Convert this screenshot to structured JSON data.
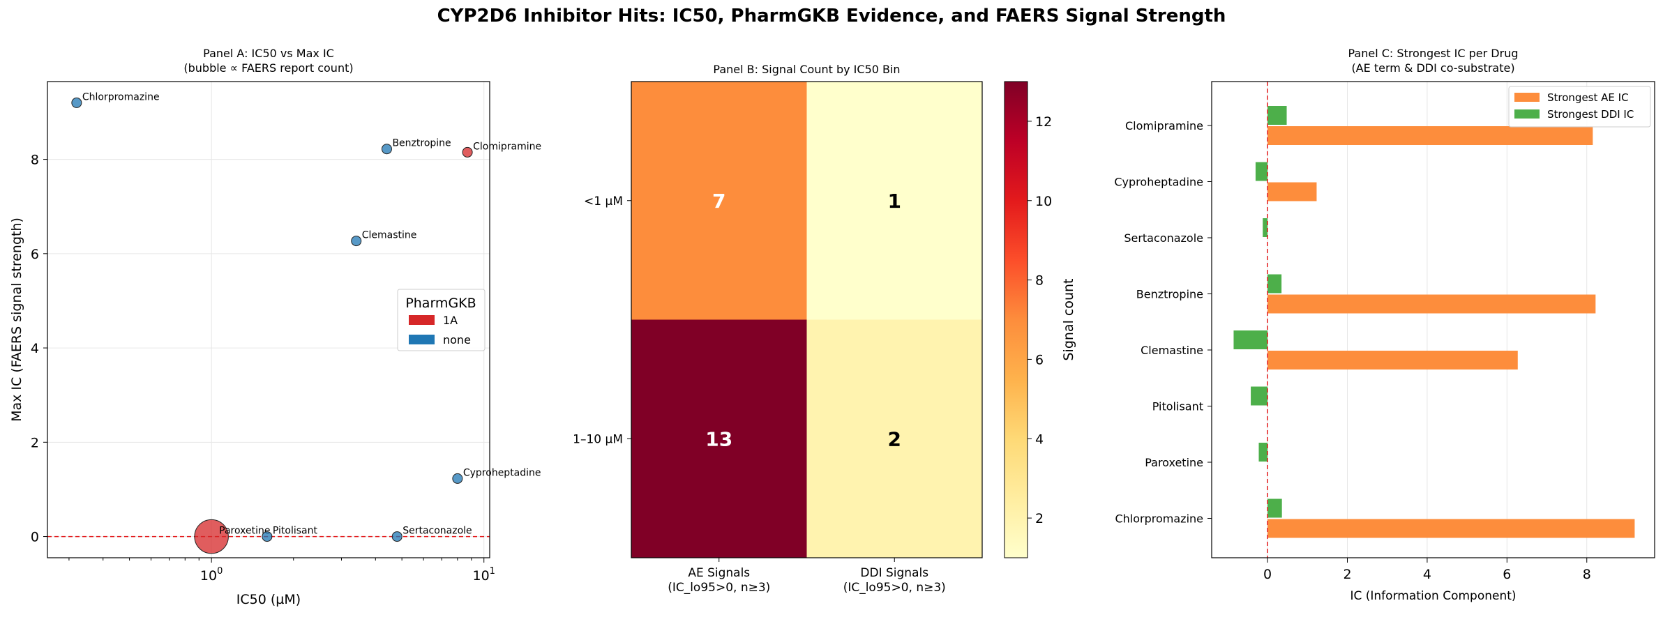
{
  "figure": {
    "title": "CYP2D6 Inhibitor Hits: IC50, PharmGKB Evidence, and FAERS Signal Strength"
  },
  "chart_data": [
    {
      "panel": "A",
      "type": "scatter",
      "title_lines": [
        "Panel A: IC50 vs Max IC",
        "(bubble ∝ FAERS report count)"
      ],
      "xlabel": "IC50 (µM)",
      "ylabel": "Max IC (FAERS signal strength)",
      "x_scale": "log",
      "xlim": [
        0.25,
        10.5
      ],
      "ylim": [
        -0.45,
        9.65
      ],
      "x_ticks": [
        {
          "value": 1,
          "base": "10",
          "exp": "0"
        },
        {
          "value": 10,
          "base": "10",
          "exp": "1"
        }
      ],
      "y_ticks": [
        0,
        2,
        4,
        6,
        8
      ],
      "grid": true,
      "reference_line": {
        "y": 0,
        "color": "#e31a1c"
      },
      "legend": {
        "title": "PharmGKB",
        "placement": "center-right",
        "entries": [
          {
            "label": "1A",
            "color": "#d62728"
          },
          {
            "label": "none",
            "color": "#1f77b4"
          }
        ]
      },
      "points": [
        {
          "label": "Chlorpromazine",
          "x": 0.32,
          "y": 9.2,
          "pharmgkb": "none",
          "size": 1
        },
        {
          "label": "Benztropine",
          "x": 4.4,
          "y": 8.22,
          "pharmgkb": "none",
          "size": 1
        },
        {
          "label": "Clomipramine",
          "x": 8.7,
          "y": 8.15,
          "pharmgkb": "1A",
          "size": 1
        },
        {
          "label": "Clemastine",
          "x": 3.4,
          "y": 6.27,
          "pharmgkb": "none",
          "size": 1
        },
        {
          "label": "Cyproheptadine",
          "x": 8.0,
          "y": 1.23,
          "pharmgkb": "none",
          "size": 1
        },
        {
          "label": "Paroxetine",
          "x": 1.0,
          "y": 0.0,
          "pharmgkb": "1A",
          "size": 12
        },
        {
          "label": "Pitolisant",
          "x": 1.6,
          "y": 0.0,
          "pharmgkb": "none",
          "size": 1
        },
        {
          "label": "Sertaconazole",
          "x": 4.8,
          "y": 0.0,
          "pharmgkb": "none",
          "size": 1
        }
      ]
    },
    {
      "panel": "B",
      "type": "heatmap",
      "title": "Panel B: Signal Count by IC50 Bin",
      "rows": [
        "<1 µM",
        "1–10 µM"
      ],
      "columns": [
        {
          "line1": "AE Signals",
          "line2": "(IC_lo95>0, n≥3)"
        },
        {
          "line1": "DDI Signals",
          "line2": "(IC_lo95>0, n≥3)"
        }
      ],
      "values": [
        [
          7,
          1
        ],
        [
          13,
          2
        ]
      ],
      "colorbar": {
        "label": "Signal count",
        "range": [
          1,
          13
        ],
        "ticks": [
          2,
          4,
          6,
          8,
          10,
          12
        ],
        "colormap": "YlOrRd"
      }
    },
    {
      "panel": "C",
      "type": "bar",
      "orientation": "horizontal",
      "title_lines": [
        "Panel C: Strongest IC per Drug",
        "(AE term & DDI co-substrate)"
      ],
      "xlabel": "IC (Information Component)",
      "xlim": [
        -1.4,
        9.7
      ],
      "x_ticks": [
        0,
        2,
        4,
        6,
        8
      ],
      "grid": true,
      "reference_line": {
        "x": 0,
        "color": "#e31a1c"
      },
      "legend": {
        "placement": "top-right"
      },
      "categories": [
        "Clomipramine",
        "Cyproheptadine",
        "Sertaconazole",
        "Benztropine",
        "Clemastine",
        "Pitolisant",
        "Paroxetine",
        "Chlorpromazine"
      ],
      "series": [
        {
          "name": "Strongest AE IC",
          "color": "#fd8d3c",
          "values": [
            8.15,
            1.23,
            null,
            8.22,
            6.27,
            null,
            null,
            9.2
          ]
        },
        {
          "name": "Strongest DDI IC",
          "color": "#4daf4a",
          "values": [
            0.48,
            -0.3,
            -0.12,
            0.35,
            -0.85,
            -0.42,
            -0.22,
            0.36
          ]
        }
      ]
    }
  ]
}
